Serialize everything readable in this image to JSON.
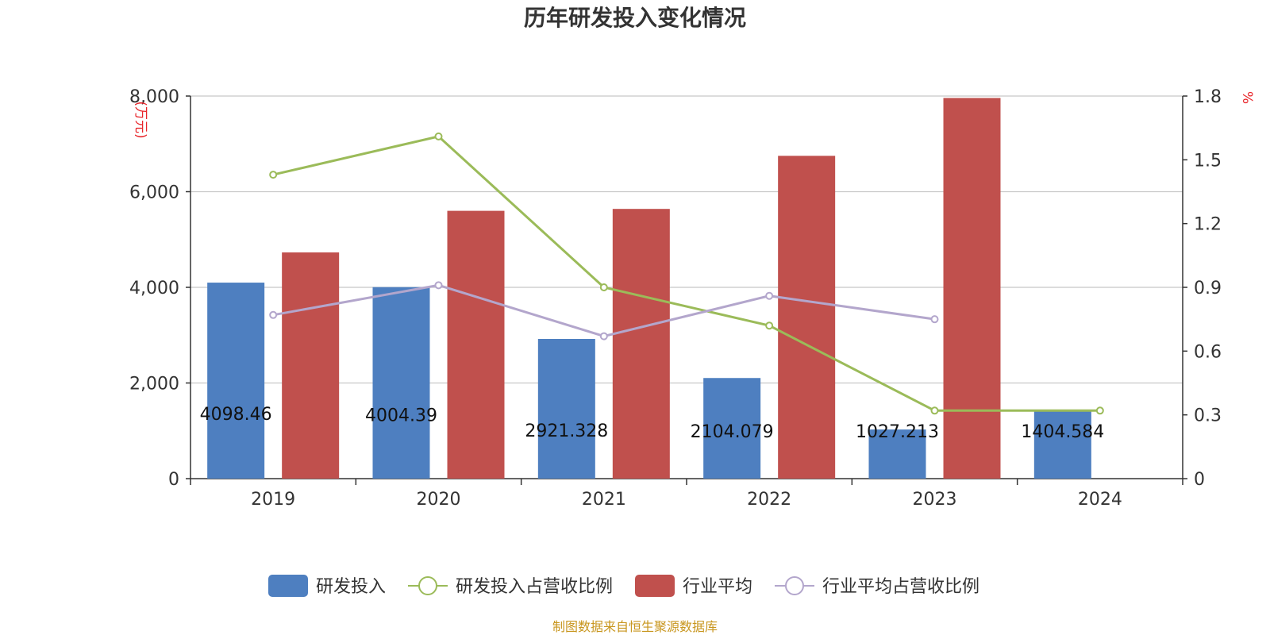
{
  "chart_data": {
    "type": "bar",
    "title": "历年研发投入变化情况",
    "categories": [
      "2019",
      "2020",
      "2021",
      "2022",
      "2023",
      "2024"
    ],
    "left_axis": {
      "unit": "万元",
      "min": 0,
      "max": 8000,
      "ticks": [
        "0",
        "2,000",
        "4,000",
        "6,000",
        "8,000"
      ]
    },
    "right_axis": {
      "unit": "%",
      "min": 0,
      "max": 1.8,
      "ticks": [
        "0",
        "0.3",
        "0.6",
        "0.9",
        "1.2",
        "1.5",
        "1.8"
      ]
    },
    "series": [
      {
        "name": "研发投入",
        "kind": "bar",
        "axis": "left",
        "color": "#4e7fc0",
        "values": [
          4098.46,
          4004.39,
          2921.328,
          2104.079,
          1027.213,
          1404.584
        ],
        "labels": [
          "4098.46",
          "4004.39",
          "2921.328",
          "2104.079",
          "1027.213",
          "1404.584"
        ]
      },
      {
        "name": "研发投入占营收比例",
        "kind": "line",
        "axis": "right",
        "color": "#9bbb59",
        "values": [
          1.43,
          1.61,
          0.9,
          0.72,
          0.32,
          0.32
        ]
      },
      {
        "name": "行业平均",
        "kind": "bar",
        "axis": "left",
        "color": "#c0504d",
        "values": [
          4730,
          5600,
          5640,
          6750,
          7960,
          null
        ]
      },
      {
        "name": "行业平均占营收比例",
        "kind": "line",
        "axis": "right",
        "color": "#b3a6cc",
        "values": [
          0.77,
          0.91,
          0.67,
          0.86,
          0.75,
          null
        ]
      }
    ],
    "grid": true,
    "legend_position": "bottom"
  },
  "source": "制图数据来自恒生聚源数据库"
}
